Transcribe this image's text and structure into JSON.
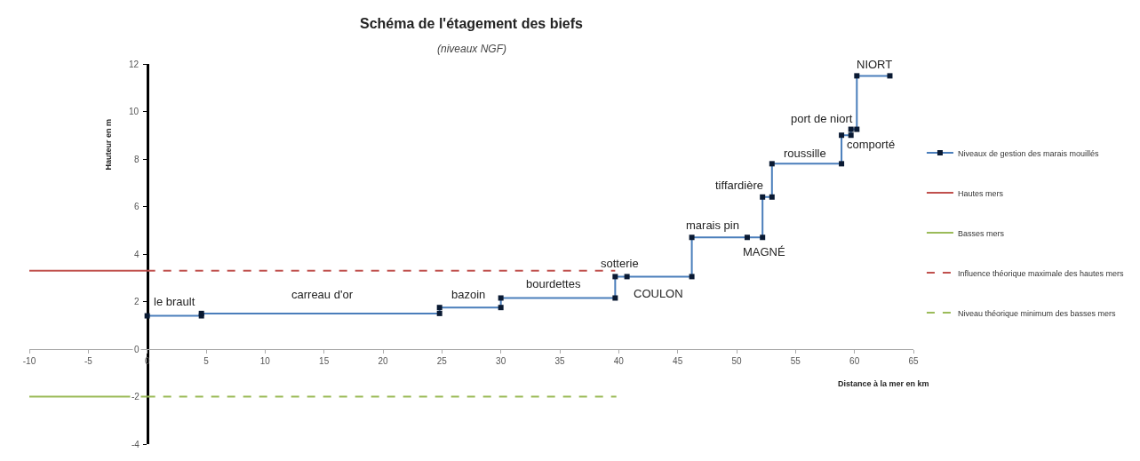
{
  "chart_data": {
    "type": "step",
    "title": "Schéma de l'étagement des biefs",
    "subtitle": "(niveaux NGF)",
    "xlabel": "Distance à la mer en km",
    "ylabel": "Hauteur en m",
    "xlim": [
      -10,
      65
    ],
    "xticks": [
      -10,
      -5,
      0,
      5,
      10,
      15,
      20,
      25,
      30,
      35,
      40,
      45,
      50,
      55,
      60,
      65
    ],
    "ylim": [
      -4,
      12
    ],
    "yticks": [
      -4,
      -2,
      0,
      2,
      4,
      6,
      8,
      10,
      12
    ],
    "legend": "right",
    "series": [
      {
        "name": "Niveaux de gestion des marais mouillés",
        "color": "#4a7ebb",
        "marker": "square",
        "line_style": "solid",
        "x": [
          0,
          4.6,
          4.6,
          24.8,
          24.8,
          30.0,
          30.0,
          39.7,
          39.7,
          40.7,
          46.2,
          46.2,
          50.9,
          52.2,
          52.2,
          53.0,
          53.0,
          58.9,
          58.9,
          59.7,
          59.7,
          60.2,
          60.2,
          63.0
        ],
        "values": [
          1.4,
          1.4,
          1.5,
          1.5,
          1.75,
          1.75,
          2.15,
          2.15,
          3.05,
          3.05,
          3.05,
          4.7,
          4.7,
          4.7,
          6.4,
          6.4,
          7.8,
          7.8,
          9.0,
          9.0,
          9.25,
          9.25,
          11.5,
          11.5
        ]
      },
      {
        "name": "Hautes mers",
        "type": "line",
        "color": "#c0504d",
        "marker": "none",
        "line_style": "solid",
        "x": [
          -10,
          0
        ],
        "values": [
          3.3,
          3.3
        ]
      },
      {
        "name": "Basses mers",
        "type": "line",
        "color": "#9bbb59",
        "marker": "none",
        "line_style": "solid",
        "x": [
          -10,
          0
        ],
        "values": [
          -2,
          -2
        ]
      },
      {
        "name": "Influence théorique maximale des hautes mers",
        "type": "line",
        "color": "#c0504d",
        "marker": "none",
        "line_style": "dashed",
        "x": [
          0,
          39.7
        ],
        "values": [
          3.3,
          3.3
        ]
      },
      {
        "name": "Niveau théorique minimum des basses mers",
        "type": "line",
        "color": "#9bbb59",
        "marker": "none",
        "line_style": "dashed",
        "x": [
          0,
          39.8
        ],
        "values": [
          -2,
          -2
        ]
      }
    ],
    "annotations": [
      "le brault",
      "carreau d'or",
      "bazoin",
      "bourdettes",
      "sotterie",
      "COULON",
      "marais pin",
      "MAGNÉ",
      "tiffardière",
      "roussille",
      "port de niort",
      "comporté",
      "NIORT"
    ]
  }
}
